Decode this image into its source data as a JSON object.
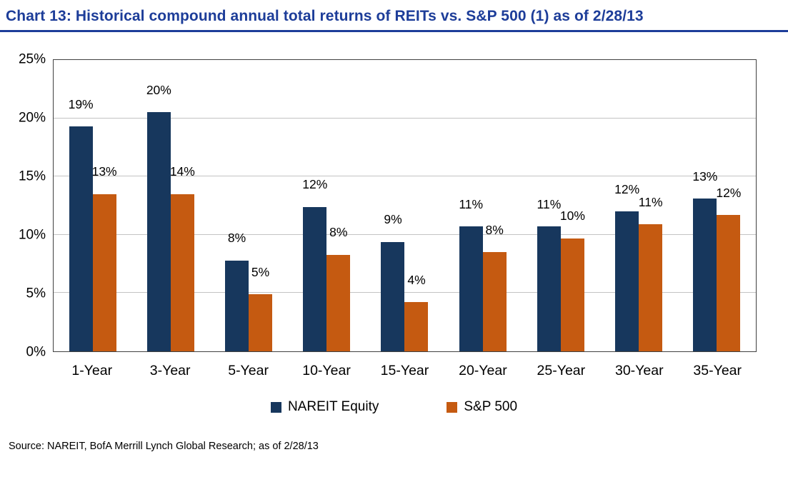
{
  "source_note": "Source: NAREIT, BofA Merrill Lynch Global Research; as of 2/28/13",
  "colors": {
    "title_blue": "#1d3d99",
    "nareit_navy": "#17375D",
    "sp500_orange": "#C55A11",
    "gridline_gray": "#C3C3C3",
    "plot_frame": "#404040"
  },
  "chart_data": {
    "type": "bar",
    "title": "Chart 13: Historical compound annual total returns of REITs vs. S&P 500 (1) as of 2/28/13",
    "categories": [
      "1-Year",
      "3-Year",
      "5-Year",
      "10-Year",
      "15-Year",
      "20-Year",
      "25-Year",
      "30-Year",
      "35-Year"
    ],
    "series": [
      {
        "name": "NAREIT Equity",
        "color": "#17375D",
        "values": [
          19.3,
          20.5,
          7.8,
          12.4,
          9.4,
          10.7,
          10.7,
          12.0,
          13.1
        ],
        "labels": [
          "19%",
          "20%",
          "8%",
          "12%",
          "9%",
          "11%",
          "11%",
          "12%",
          "13%"
        ]
      },
      {
        "name": "S&P 500",
        "color": "#C55A11",
        "values": [
          13.5,
          13.5,
          4.9,
          8.3,
          4.2,
          8.5,
          9.7,
          10.9,
          11.7
        ],
        "labels": [
          "13%",
          "14%",
          "5%",
          "8%",
          "4%",
          "8%",
          "10%",
          "11%",
          "12%"
        ]
      }
    ],
    "xlabel": "",
    "ylabel": "",
    "ylim": [
      0,
      25
    ],
    "yticks": [
      0,
      5,
      10,
      15,
      20,
      25
    ],
    "ytick_labels": [
      "0%",
      "5%",
      "10%",
      "15%",
      "20%",
      "25%"
    ],
    "grid": true,
    "legend_position": "bottom"
  }
}
